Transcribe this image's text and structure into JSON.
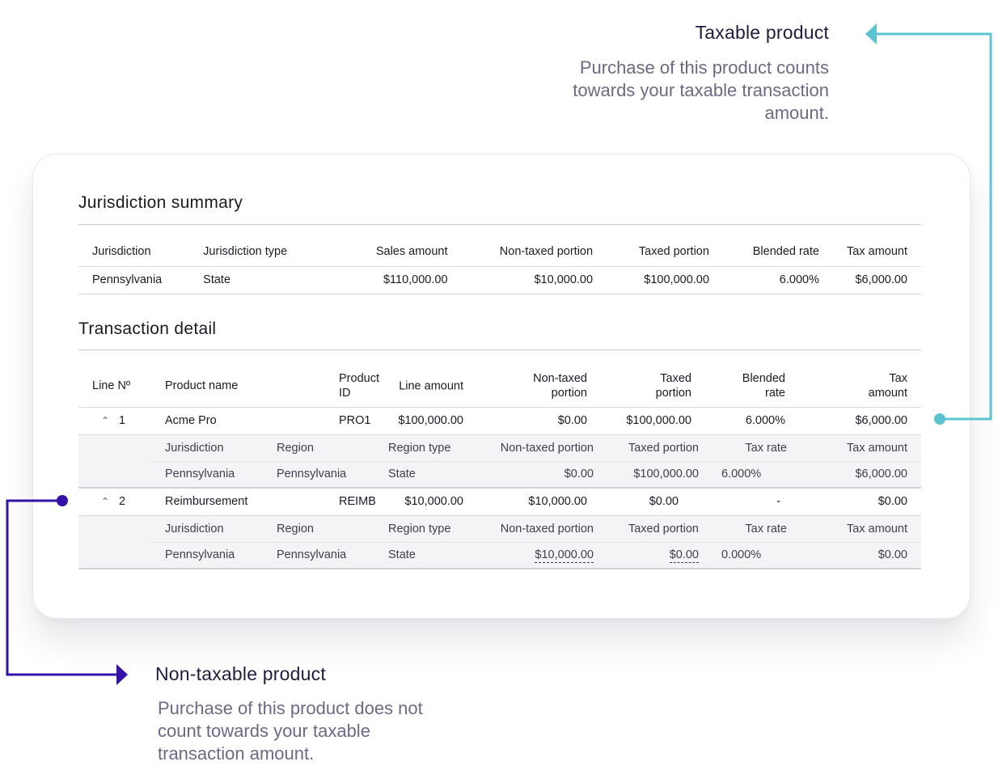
{
  "callouts": {
    "taxable": {
      "title": "Taxable product",
      "text": "Purchase of this product counts towards your taxable transaction amount.",
      "color": "#5bc4d0"
    },
    "nontaxable": {
      "title": "Non-taxable product",
      "text": "Purchase of this product does not count towards your taxable transaction amount.",
      "color": "#3412a8"
    }
  },
  "summary": {
    "title": "Jurisdiction summary",
    "headers": [
      "Jurisdiction",
      "Jurisdiction type",
      "Sales amount",
      "Non-taxed portion",
      "Taxed portion",
      "Blended rate",
      "Tax amount"
    ],
    "rows": [
      [
        "Pennsylvania",
        "State",
        "$110,000.00",
        "$10,000.00",
        "$100,000.00",
        "6.000%",
        "$6,000.00"
      ]
    ]
  },
  "detail": {
    "title": "Transaction detail",
    "headers": {
      "line_no": "Line Nº",
      "product_name": "Product name",
      "product_id_1": "Product",
      "product_id_2": "ID",
      "line_amount": "Line amount",
      "non_taxed_1": "Non-taxed",
      "non_taxed_2": "portion",
      "taxed_1": "Taxed",
      "taxed_2": "portion",
      "blended_1": "Blended",
      "blended_2": "rate",
      "tax_1": "Tax",
      "tax_2": "amount"
    },
    "sub_headers": [
      "Jurisdiction",
      "Region",
      "Region type",
      "Non-taxed portion",
      "Taxed portion",
      "Tax rate",
      "Tax amount"
    ],
    "lines": [
      {
        "chevron": "^",
        "line_no": "1",
        "product_name": "Acme Pro",
        "product_id": "PRO1",
        "line_amount": "$100,000.00",
        "non_taxed": "$0.00",
        "taxed": "$100,000.00",
        "blended_rate": "6.000%",
        "tax_amount": "$6,000.00",
        "jurisdiction": [
          "Pennsylvania",
          "Pennsylvania",
          "State",
          "$0.00",
          "$100,000.00",
          "6.000%",
          "$6,000.00"
        ]
      },
      {
        "chevron": "^",
        "line_no": "2",
        "product_name": "Reimbursement",
        "product_id": "REIMB",
        "line_amount": "$10,000.00",
        "non_taxed": "$10,000.00",
        "taxed": "$0.00",
        "blended_rate": "-",
        "tax_amount": "$0.00",
        "jurisdiction": [
          "Pennsylvania",
          "Pennsylvania",
          "State",
          "$10,000.00",
          "$0.00",
          "0.000%",
          "$0.00"
        ]
      }
    ]
  }
}
